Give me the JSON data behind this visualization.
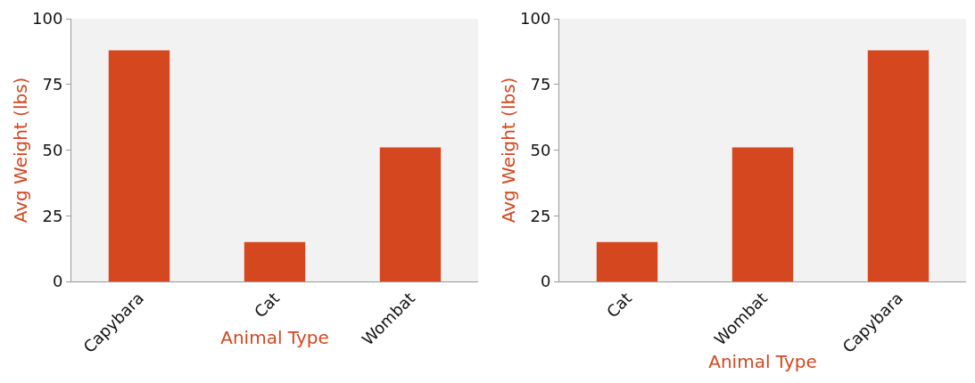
{
  "chart_data": [
    {
      "type": "bar",
      "categories": [
        "Capybara",
        "Cat",
        "Wombat"
      ],
      "values": [
        88,
        15,
        51
      ],
      "color": "#d5471f",
      "xlabel": "Animal Type",
      "ylabel": "Avg Weight (lbs)",
      "ylim": [
        0,
        100
      ],
      "yticks": [
        0,
        25,
        50,
        75,
        100
      ],
      "grid": false,
      "legend": false
    },
    {
      "type": "bar",
      "categories": [
        "Cat",
        "Wombat",
        "Capybara"
      ],
      "values": [
        15,
        51,
        88
      ],
      "color": "#d5471f",
      "xlabel": "Animal Type",
      "ylabel": "Avg Weight (lbs)",
      "ylim": [
        0,
        100
      ],
      "yticks": [
        0,
        25,
        50,
        75,
        100
      ],
      "grid": false,
      "legend": false
    }
  ]
}
